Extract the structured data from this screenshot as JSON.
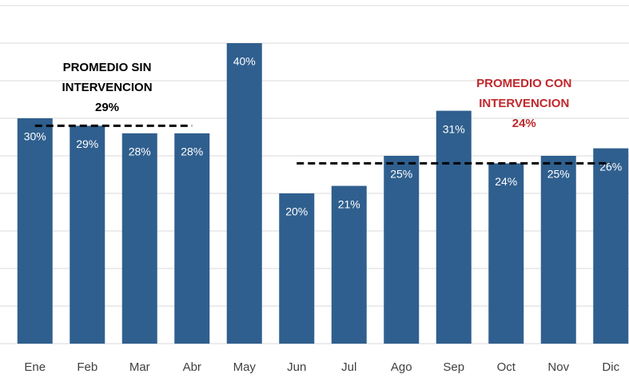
{
  "chart_data": {
    "type": "bar",
    "categories": [
      "Ene",
      "Feb",
      "Mar",
      "Abr",
      "May",
      "Jun",
      "Jul",
      "Ago",
      "Sep",
      "Oct",
      "Nov",
      "Dic"
    ],
    "values": [
      30,
      29,
      28,
      28,
      40,
      20,
      21,
      25,
      31,
      24,
      25,
      26
    ],
    "value_labels": [
      "30%",
      "29%",
      "28%",
      "28%",
      "40%",
      "20%",
      "21%",
      "25%",
      "31%",
      "24%",
      "25%",
      "26%"
    ],
    "color": "#2f5f8e",
    "ylim": [
      0,
      45
    ],
    "yticks": [
      0,
      5,
      10,
      15,
      20,
      25,
      30,
      35,
      40,
      45
    ],
    "grid": true,
    "annotations": [
      {
        "lines": [
          "PROMEDIO SIN",
          "INTERVENCION"
        ],
        "value": 29,
        "value_label": "29%",
        "span": [
          "Ene",
          "Abr"
        ],
        "color": "#000000"
      },
      {
        "lines": [
          "PROMEDIO CON",
          "INTERVENCION"
        ],
        "value": 24,
        "value_label": "24%",
        "span": [
          "Jun",
          "Dic"
        ],
        "color": "#c0282d"
      }
    ]
  }
}
